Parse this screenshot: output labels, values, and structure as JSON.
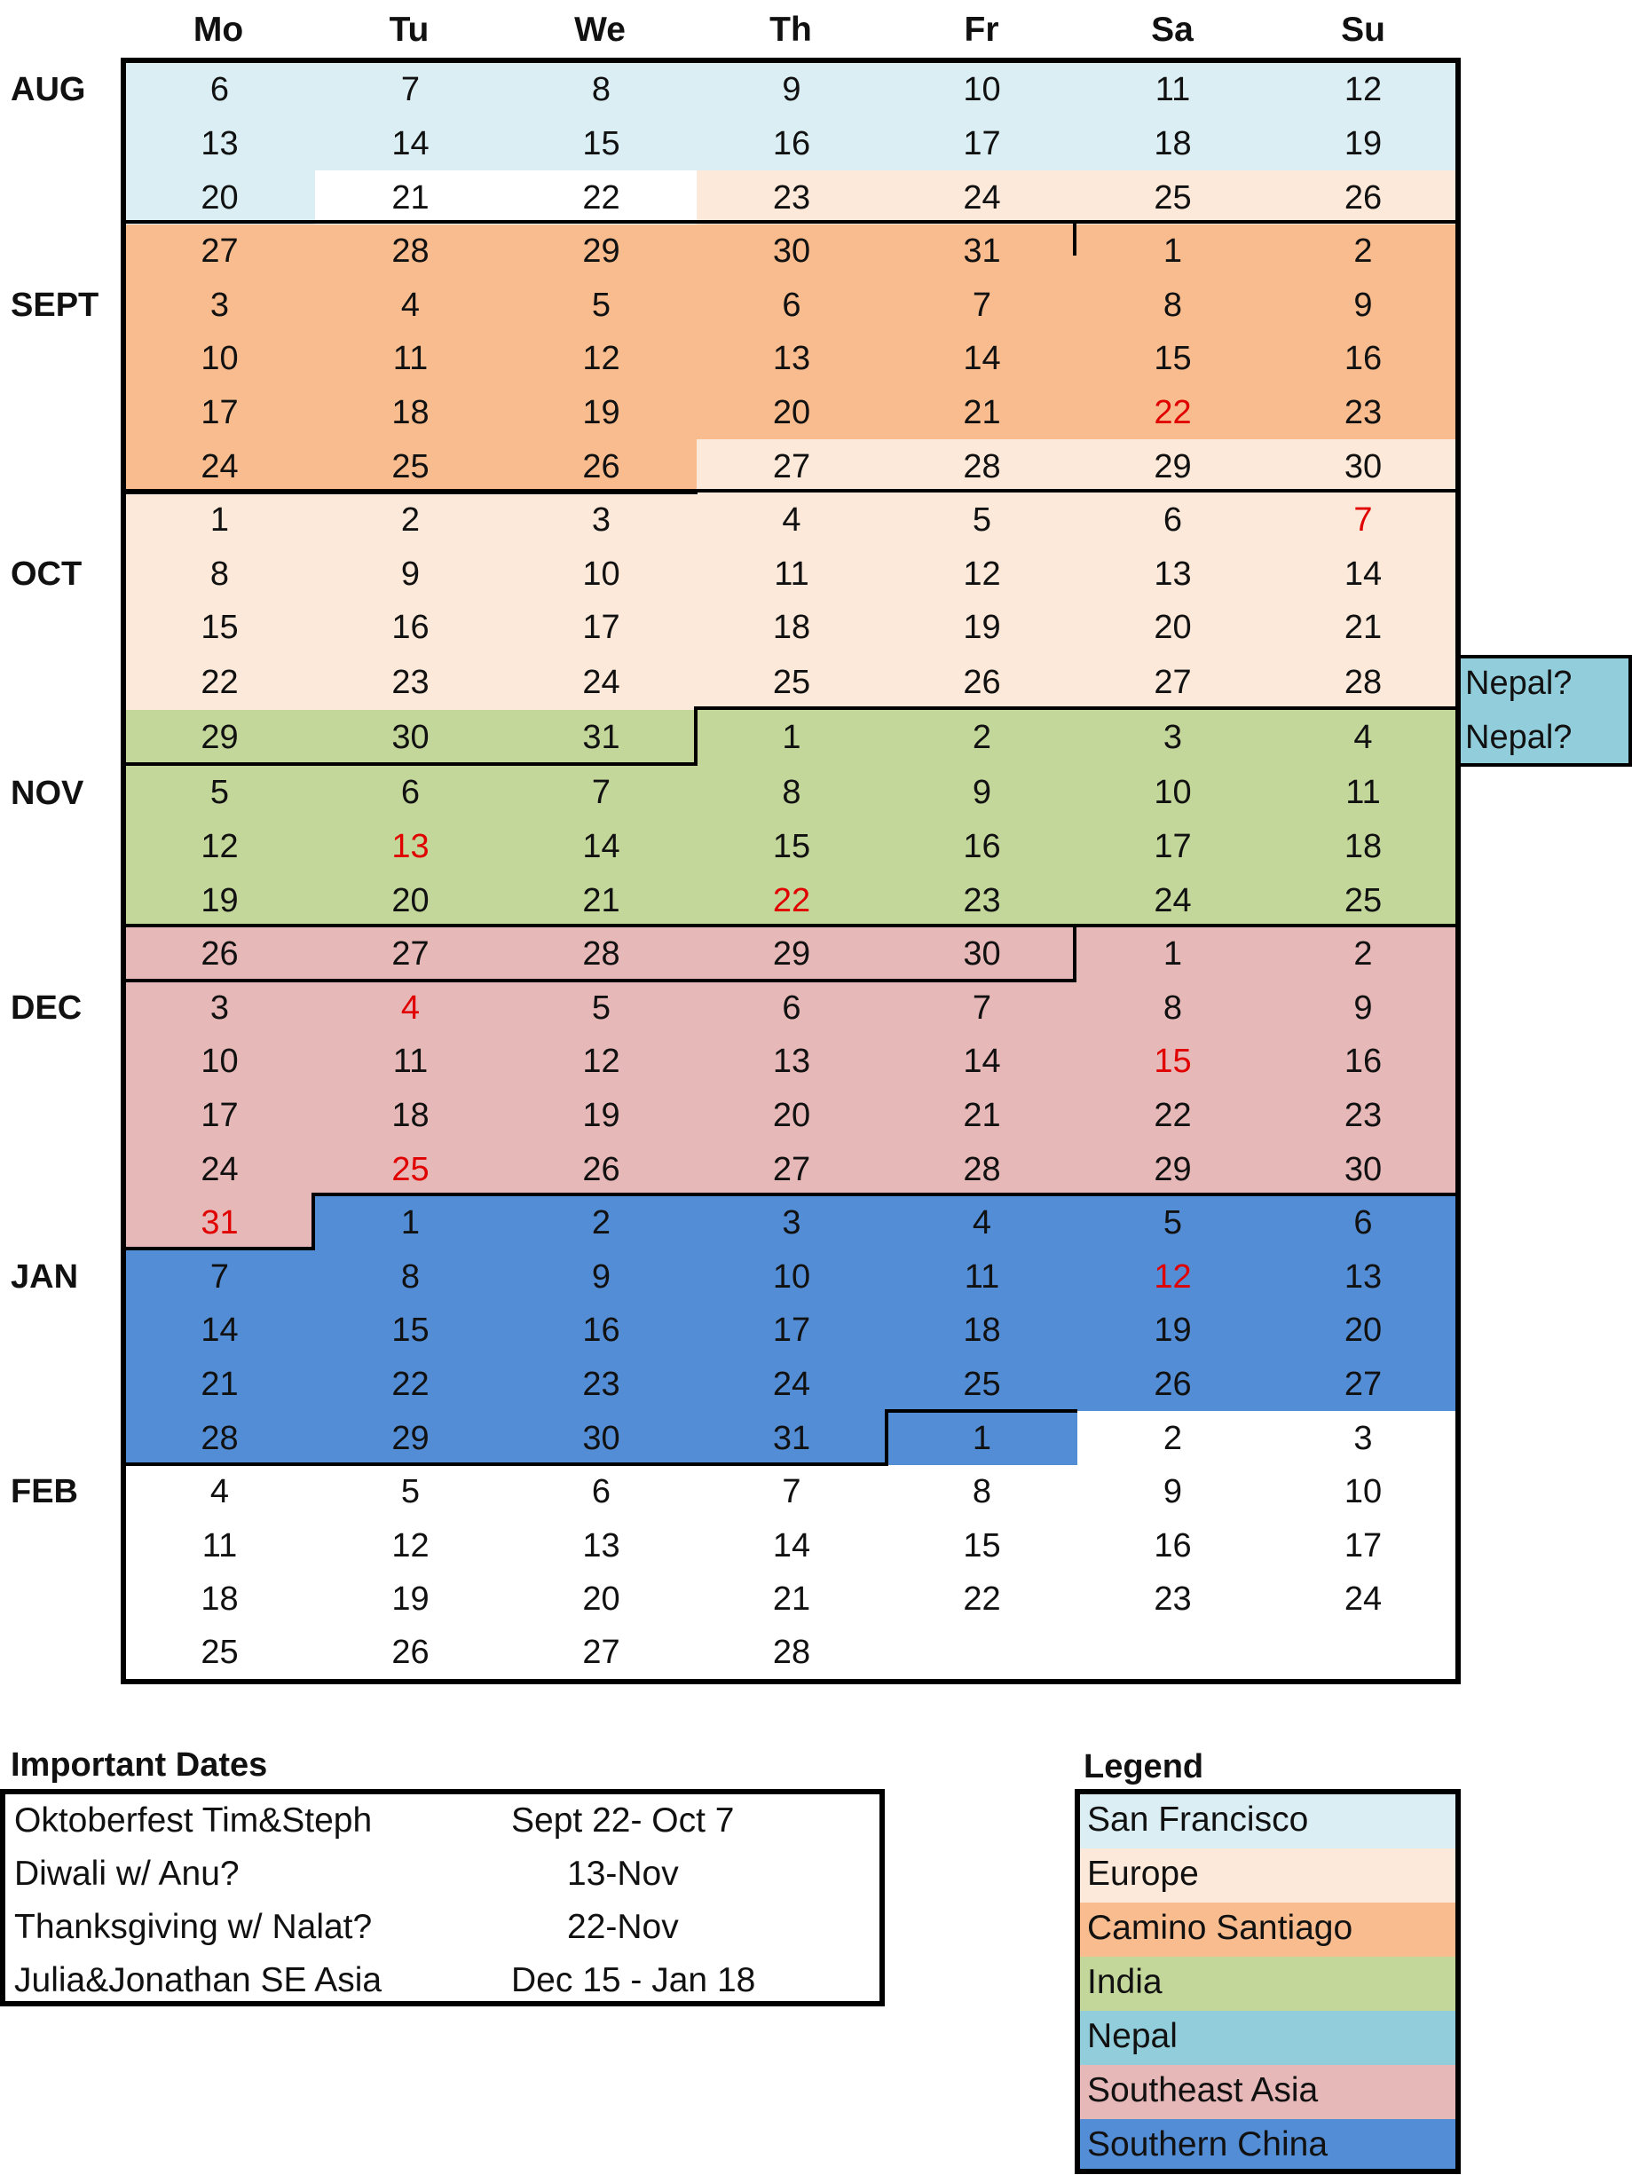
{
  "days_of_week": [
    "Mo",
    "Tu",
    "We",
    "Th",
    "Fr",
    "Sa",
    "Su"
  ],
  "months": [
    "AUG",
    "SEPT",
    "OCT",
    "NOV",
    "DEC",
    "JAN",
    "FEB"
  ],
  "colors": {
    "sf": "#daeef3",
    "eu": "#fde9d9",
    "cs": "#f8bc8e",
    "in": "#c4d79b",
    "np": "#92cddc",
    "sea": "#e6b8b7",
    "sc": "#538dd5",
    "none": "#ffffff",
    "highlight_text": "#e00000"
  },
  "calendar": [
    {
      "days": [
        6,
        7,
        8,
        9,
        10,
        11,
        12
      ],
      "regions": [
        "sf",
        "sf",
        "sf",
        "sf",
        "sf",
        "sf",
        "sf"
      ]
    },
    {
      "days": [
        13,
        14,
        15,
        16,
        17,
        18,
        19
      ],
      "regions": [
        "sf",
        "sf",
        "sf",
        "sf",
        "sf",
        "sf",
        "sf"
      ]
    },
    {
      "days": [
        20,
        21,
        22,
        23,
        24,
        25,
        26
      ],
      "regions": [
        "sf",
        "none",
        "none",
        "eu",
        "eu",
        "eu",
        "eu"
      ]
    },
    {
      "days": [
        27,
        28,
        29,
        30,
        31,
        1,
        2
      ],
      "regions": [
        "cs",
        "cs",
        "cs",
        "cs",
        "cs",
        "cs",
        "cs"
      ]
    },
    {
      "days": [
        3,
        4,
        5,
        6,
        7,
        8,
        9
      ],
      "regions": [
        "cs",
        "cs",
        "cs",
        "cs",
        "cs",
        "cs",
        "cs"
      ]
    },
    {
      "days": [
        10,
        11,
        12,
        13,
        14,
        15,
        16
      ],
      "regions": [
        "cs",
        "cs",
        "cs",
        "cs",
        "cs",
        "cs",
        "cs"
      ]
    },
    {
      "days": [
        17,
        18,
        19,
        20,
        21,
        22,
        23
      ],
      "regions": [
        "cs",
        "cs",
        "cs",
        "cs",
        "cs",
        "cs",
        "cs"
      ],
      "highlights": [
        5
      ]
    },
    {
      "days": [
        24,
        25,
        26,
        27,
        28,
        29,
        30
      ],
      "regions": [
        "cs",
        "cs",
        "cs",
        "eu",
        "eu",
        "eu",
        "eu"
      ]
    },
    {
      "days": [
        1,
        2,
        3,
        4,
        5,
        6,
        7
      ],
      "regions": [
        "eu",
        "eu",
        "eu",
        "eu",
        "eu",
        "eu",
        "eu"
      ],
      "highlights": [
        6
      ]
    },
    {
      "days": [
        8,
        9,
        10,
        11,
        12,
        13,
        14
      ],
      "regions": [
        "eu",
        "eu",
        "eu",
        "eu",
        "eu",
        "eu",
        "eu"
      ]
    },
    {
      "days": [
        15,
        16,
        17,
        18,
        19,
        20,
        21
      ],
      "regions": [
        "eu",
        "eu",
        "eu",
        "eu",
        "eu",
        "eu",
        "eu"
      ]
    },
    {
      "days": [
        22,
        23,
        24,
        25,
        26,
        27,
        28
      ],
      "regions": [
        "eu",
        "eu",
        "eu",
        "eu",
        "eu",
        "eu",
        "eu"
      ],
      "note": "Nepal?"
    },
    {
      "days": [
        29,
        30,
        31,
        1,
        2,
        3,
        4
      ],
      "regions": [
        "in",
        "in",
        "in",
        "in",
        "in",
        "in",
        "in"
      ],
      "note": "Nepal?"
    },
    {
      "days": [
        5,
        6,
        7,
        8,
        9,
        10,
        11
      ],
      "regions": [
        "in",
        "in",
        "in",
        "in",
        "in",
        "in",
        "in"
      ]
    },
    {
      "days": [
        12,
        13,
        14,
        15,
        16,
        17,
        18
      ],
      "regions": [
        "in",
        "in",
        "in",
        "in",
        "in",
        "in",
        "in"
      ],
      "highlights": [
        1
      ]
    },
    {
      "days": [
        19,
        20,
        21,
        22,
        23,
        24,
        25
      ],
      "regions": [
        "in",
        "in",
        "in",
        "in",
        "in",
        "in",
        "in"
      ],
      "highlights": [
        3
      ]
    },
    {
      "days": [
        26,
        27,
        28,
        29,
        30,
        1,
        2
      ],
      "regions": [
        "sea",
        "sea",
        "sea",
        "sea",
        "sea",
        "sea",
        "sea"
      ]
    },
    {
      "days": [
        3,
        4,
        5,
        6,
        7,
        8,
        9
      ],
      "regions": [
        "sea",
        "sea",
        "sea",
        "sea",
        "sea",
        "sea",
        "sea"
      ],
      "highlights": [
        1
      ]
    },
    {
      "days": [
        10,
        11,
        12,
        13,
        14,
        15,
        16
      ],
      "regions": [
        "sea",
        "sea",
        "sea",
        "sea",
        "sea",
        "sea",
        "sea"
      ],
      "highlights": [
        5
      ]
    },
    {
      "days": [
        17,
        18,
        19,
        20,
        21,
        22,
        23
      ],
      "regions": [
        "sea",
        "sea",
        "sea",
        "sea",
        "sea",
        "sea",
        "sea"
      ]
    },
    {
      "days": [
        24,
        25,
        26,
        27,
        28,
        29,
        30
      ],
      "regions": [
        "sea",
        "sea",
        "sea",
        "sea",
        "sea",
        "sea",
        "sea"
      ],
      "highlights": [
        1
      ]
    },
    {
      "days": [
        31,
        1,
        2,
        3,
        4,
        5,
        6
      ],
      "regions": [
        "sea",
        "sc",
        "sc",
        "sc",
        "sc",
        "sc",
        "sc"
      ],
      "highlights": [
        0
      ]
    },
    {
      "days": [
        7,
        8,
        9,
        10,
        11,
        12,
        13
      ],
      "regions": [
        "sc",
        "sc",
        "sc",
        "sc",
        "sc",
        "sc",
        "sc"
      ],
      "highlights": [
        5
      ]
    },
    {
      "days": [
        14,
        15,
        16,
        17,
        18,
        19,
        20
      ],
      "regions": [
        "sc",
        "sc",
        "sc",
        "sc",
        "sc",
        "sc",
        "sc"
      ]
    },
    {
      "days": [
        21,
        22,
        23,
        24,
        25,
        26,
        27
      ],
      "regions": [
        "sc",
        "sc",
        "sc",
        "sc",
        "sc",
        "sc",
        "sc"
      ]
    },
    {
      "days": [
        28,
        29,
        30,
        31,
        1,
        2,
        3
      ],
      "regions": [
        "sc",
        "sc",
        "sc",
        "sc",
        "sc",
        "none",
        "none"
      ]
    },
    {
      "days": [
        4,
        5,
        6,
        7,
        8,
        9,
        10
      ],
      "regions": [
        "none",
        "none",
        "none",
        "none",
        "none",
        "none",
        "none"
      ]
    },
    {
      "days": [
        11,
        12,
        13,
        14,
        15,
        16,
        17
      ],
      "regions": [
        "none",
        "none",
        "none",
        "none",
        "none",
        "none",
        "none"
      ]
    },
    {
      "days": [
        18,
        19,
        20,
        21,
        22,
        23,
        24
      ],
      "regions": [
        "none",
        "none",
        "none",
        "none",
        "none",
        "none",
        "none"
      ]
    },
    {
      "days": [
        25,
        26,
        27,
        28,
        null,
        null,
        null
      ],
      "regions": [
        "none",
        "none",
        "none",
        "none",
        "none",
        "none",
        "none"
      ]
    }
  ],
  "important_dates": {
    "title": "Important Dates",
    "items": [
      {
        "event": "Oktoberfest Tim&Steph",
        "date": "Sept 22- Oct 7"
      },
      {
        "event": "Diwali w/ Anu?",
        "date": "13-Nov"
      },
      {
        "event": "Thanksgiving w/ Nalat?",
        "date": "22-Nov"
      },
      {
        "event": "Julia&Jonathan SE Asia",
        "date": "Dec 15 - Jan 18"
      }
    ]
  },
  "legend": {
    "title": "Legend",
    "items": [
      {
        "label": "San Francisco",
        "region": "sf"
      },
      {
        "label": "Europe",
        "region": "eu"
      },
      {
        "label": "Camino Santiago",
        "region": "cs"
      },
      {
        "label": "India",
        "region": "in"
      },
      {
        "label": "Nepal",
        "region": "np"
      },
      {
        "label": "Southeast Asia",
        "region": "sea"
      },
      {
        "label": "Southern China",
        "region": "sc"
      }
    ]
  }
}
